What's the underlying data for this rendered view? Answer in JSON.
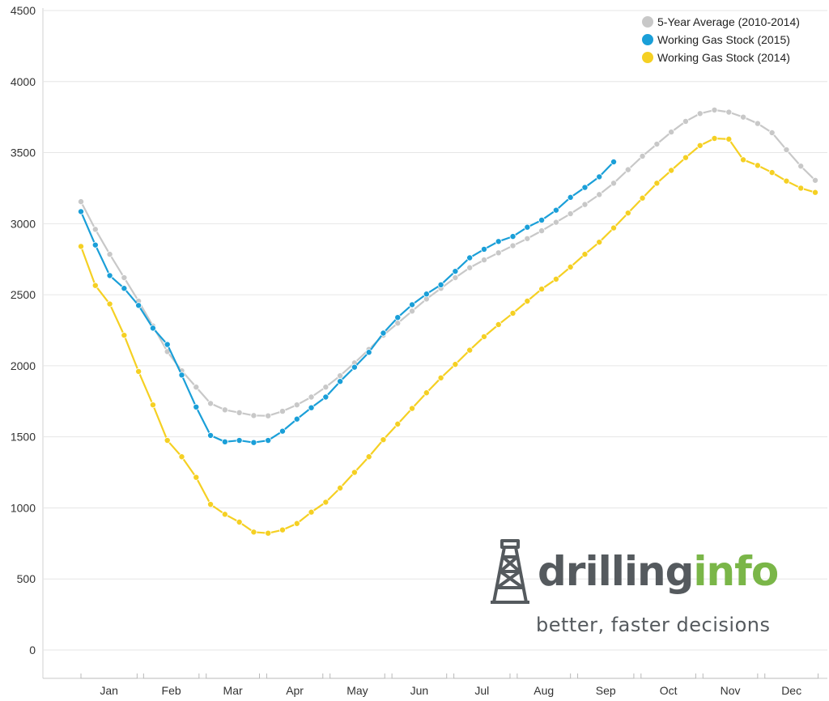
{
  "chart_data": {
    "type": "line",
    "title": "",
    "xlabel": "",
    "ylabel": "",
    "ylim": [
      0,
      4500
    ],
    "y_ticks": [
      0,
      500,
      1000,
      1500,
      2000,
      2500,
      3000,
      3500,
      4000,
      4500
    ],
    "x_axis": "week of year (1-52)",
    "month_labels": [
      "Jan",
      "Feb",
      "Mar",
      "Apr",
      "May",
      "Jun",
      "Jul",
      "Aug",
      "Sep",
      "Oct",
      "Nov",
      "Dec"
    ],
    "grid": true,
    "legend_position": "top-right",
    "series": [
      {
        "name": "5-Year Average (2010-2014)",
        "color": "#c8c8c8",
        "values": [
          3155,
          2960,
          2785,
          2620,
          2455,
          2280,
          2100,
          1965,
          1850,
          1735,
          1690,
          1670,
          1650,
          1648,
          1680,
          1725,
          1780,
          1850,
          1930,
          2020,
          2115,
          2215,
          2300,
          2385,
          2470,
          2545,
          2620,
          2690,
          2745,
          2795,
          2845,
          2895,
          2950,
          3010,
          3070,
          3135,
          3205,
          3285,
          3380,
          3475,
          3560,
          3645,
          3720,
          3775,
          3800,
          3785,
          3750,
          3705,
          3640,
          3520,
          3405,
          3305
        ]
      },
      {
        "name": "Working Gas Stock (2015)",
        "color": "#1a9fd8",
        "values": [
          3085,
          2850,
          2635,
          2545,
          2425,
          2265,
          2150,
          1935,
          1710,
          1510,
          1465,
          1475,
          1460,
          1475,
          1540,
          1625,
          1705,
          1780,
          1890,
          1990,
          2095,
          2230,
          2340,
          2430,
          2505,
          2570,
          2665,
          2760,
          2820,
          2875,
          2910,
          2975,
          3025,
          3095,
          3185,
          3255,
          3330,
          3435
        ]
      },
      {
        "name": "Working Gas Stock (2014)",
        "color": "#f5d023",
        "values": [
          2840,
          2565,
          2435,
          2215,
          1960,
          1725,
          1475,
          1360,
          1215,
          1025,
          955,
          900,
          830,
          822,
          845,
          890,
          970,
          1040,
          1140,
          1250,
          1360,
          1480,
          1590,
          1700,
          1810,
          1915,
          2010,
          2110,
          2205,
          2290,
          2370,
          2455,
          2540,
          2610,
          2695,
          2785,
          2870,
          2970,
          3075,
          3180,
          3285,
          3375,
          3465,
          3550,
          3600,
          3595,
          3450,
          3410,
          3360,
          3300,
          3250,
          3220
        ]
      }
    ]
  },
  "logo": {
    "word_part1": "drilling",
    "word_part2": "info",
    "tagline": "better, faster decisions",
    "color_dark": "#555a5e",
    "color_green": "#7ab648"
  }
}
